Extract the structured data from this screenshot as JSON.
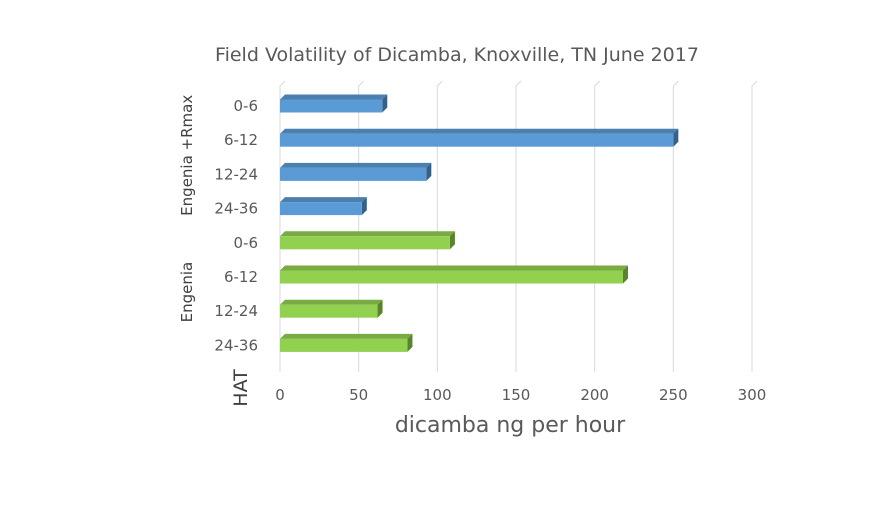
{
  "chart_data": {
    "type": "bar",
    "orientation": "horizontal",
    "title": "Field Volatility of Dicamba, Knoxville, TN June 2017",
    "xlabel": "dicamba ng per hour",
    "ylabel": "HAT",
    "xlim": [
      0,
      300
    ],
    "xticks": [
      0,
      50,
      100,
      150,
      200,
      250,
      300
    ],
    "grid": "vertical",
    "legend": "none",
    "groups": [
      {
        "name": "Engenia +Rmax",
        "color": "#5b9bd5",
        "categories": [
          "0-6",
          "6-12",
          "12-24",
          "24-36"
        ],
        "values": [
          65,
          250,
          93,
          52
        ]
      },
      {
        "name": "Engenia",
        "color": "#92d050",
        "categories": [
          "0-6",
          "6-12",
          "12-24",
          "24-36"
        ],
        "values": [
          108,
          218,
          62,
          81
        ]
      }
    ]
  }
}
